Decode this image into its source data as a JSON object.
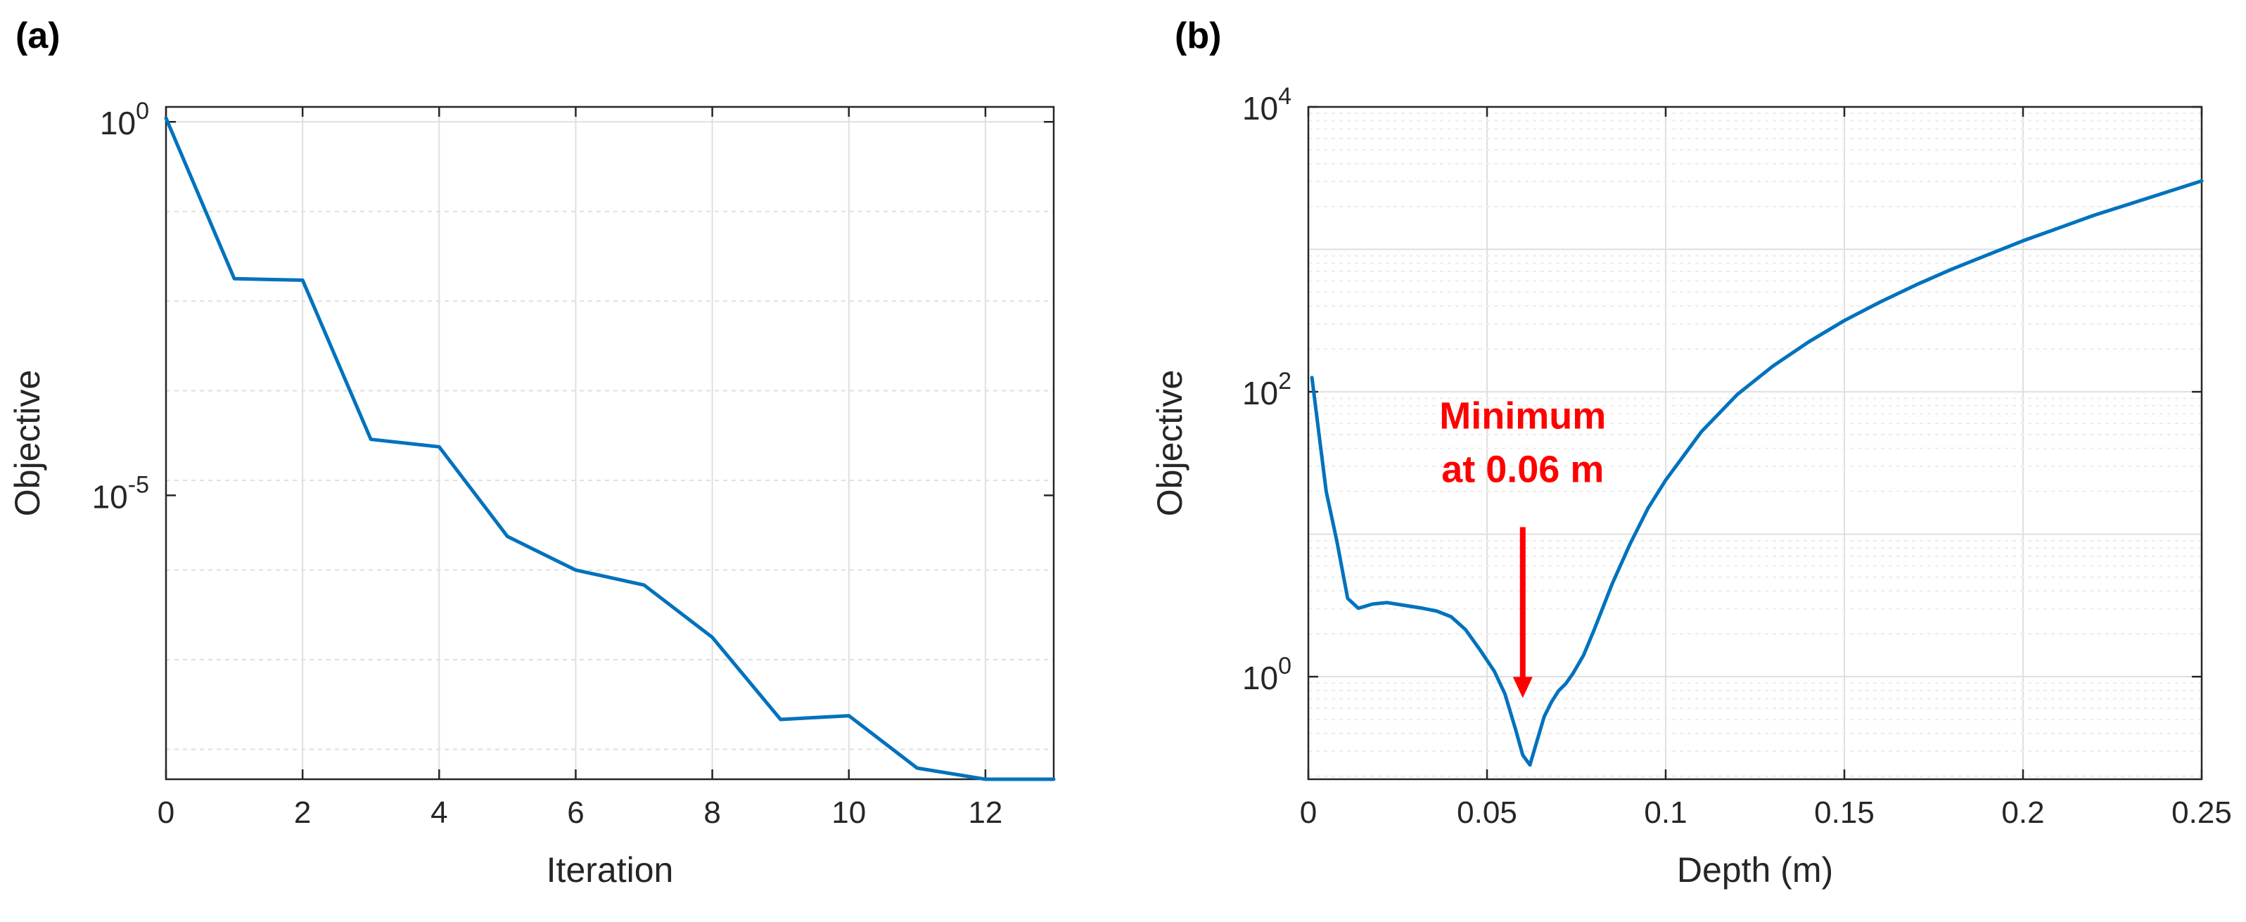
{
  "colors": {
    "line": "#0072BD",
    "axis": "#262626",
    "grid": "#dfdfdf",
    "minor_grid": "#ececec",
    "annotation": "#ff0000"
  },
  "chart_data": [
    {
      "panel_label": "(a)",
      "type": "line",
      "xlabel": "Iteration",
      "ylabel": "Objective",
      "yscale": "log",
      "xlim": [
        0,
        13
      ],
      "ylog_lim": [
        -8.8,
        0.2
      ],
      "x_ticks": [
        {
          "value": 0,
          "label": "0"
        },
        {
          "value": 2,
          "label": "2"
        },
        {
          "value": 4,
          "label": "4"
        },
        {
          "value": 6,
          "label": "6"
        },
        {
          "value": 8,
          "label": "8"
        },
        {
          "value": 10,
          "label": "10"
        },
        {
          "value": 12,
          "label": "12"
        }
      ],
      "x_grid": [
        0,
        2,
        4,
        6,
        8,
        10,
        12
      ],
      "y_ticks": [
        {
          "log": 0,
          "base": "10",
          "exp": "0"
        },
        {
          "log": -5,
          "base": "10",
          "exp": "-5"
        }
      ],
      "y_grid": [
        0,
        -1.2,
        -2.4,
        -3.6,
        -4.8,
        -6,
        -7.2,
        -8.4
      ],
      "series": [
        {
          "name": "Objective",
          "x": [
            0,
            1,
            2,
            3,
            4,
            5,
            6,
            7,
            8,
            9,
            10,
            11,
            12,
            13
          ],
          "log_values": [
            0.05,
            -2.1,
            -2.12,
            -4.25,
            -4.35,
            -5.55,
            -6.0,
            -6.2,
            -6.9,
            -8.0,
            -7.95,
            -8.65,
            -8.8,
            -8.8
          ]
        }
      ]
    },
    {
      "panel_label": "(b)",
      "type": "line",
      "xlabel": "Depth (m)",
      "ylabel": "Objective",
      "yscale": "log",
      "xlim": [
        0,
        0.25
      ],
      "ylog_lim": [
        -0.72,
        4
      ],
      "x_ticks": [
        {
          "value": 0,
          "label": "0"
        },
        {
          "value": 0.05,
          "label": "0.05"
        },
        {
          "value": 0.1,
          "label": "0.1"
        },
        {
          "value": 0.15,
          "label": "0.15"
        },
        {
          "value": 0.2,
          "label": "0.2"
        },
        {
          "value": 0.25,
          "label": "0.25"
        }
      ],
      "x_grid": [
        0,
        0.05,
        0.1,
        0.15,
        0.2,
        0.25
      ],
      "y_ticks": [
        {
          "log": 0,
          "base": "10",
          "exp": "0"
        },
        {
          "log": 2,
          "base": "10",
          "exp": "2"
        },
        {
          "log": 4,
          "base": "10",
          "exp": "4"
        }
      ],
      "y_major": [
        0,
        1,
        2,
        3,
        4
      ],
      "y_minor_range": [
        -1,
        3
      ],
      "series": [
        {
          "name": "Objective",
          "x": [
            0.001,
            0.003,
            0.005,
            0.008,
            0.011,
            0.014,
            0.018,
            0.022,
            0.027,
            0.032,
            0.036,
            0.04,
            0.044,
            0.048,
            0.052,
            0.055,
            0.058,
            0.06,
            0.062,
            0.064,
            0.066,
            0.068,
            0.07,
            0.072,
            0.074,
            0.077,
            0.08,
            0.085,
            0.09,
            0.095,
            0.1,
            0.11,
            0.12,
            0.13,
            0.14,
            0.15,
            0.16,
            0.17,
            0.18,
            0.19,
            0.2,
            0.21,
            0.22,
            0.23,
            0.24,
            0.25
          ],
          "log_values": [
            2.1,
            1.7,
            1.3,
            0.95,
            0.55,
            0.48,
            0.51,
            0.52,
            0.5,
            0.48,
            0.46,
            0.42,
            0.33,
            0.19,
            0.04,
            -0.12,
            -0.37,
            -0.55,
            -0.62,
            -0.45,
            -0.28,
            -0.18,
            -0.1,
            -0.05,
            0.02,
            0.15,
            0.33,
            0.65,
            0.93,
            1.18,
            1.38,
            1.72,
            1.98,
            2.18,
            2.35,
            2.5,
            2.63,
            2.75,
            2.86,
            2.96,
            3.06,
            3.15,
            3.24,
            3.32,
            3.4,
            3.48
          ]
        }
      ],
      "annotation": {
        "line1": "Minimum",
        "line2": "at 0.06 m",
        "arrow_x": 0.06,
        "arrow_from_log": 1.05,
        "arrow_to_log": -0.15
      }
    }
  ]
}
